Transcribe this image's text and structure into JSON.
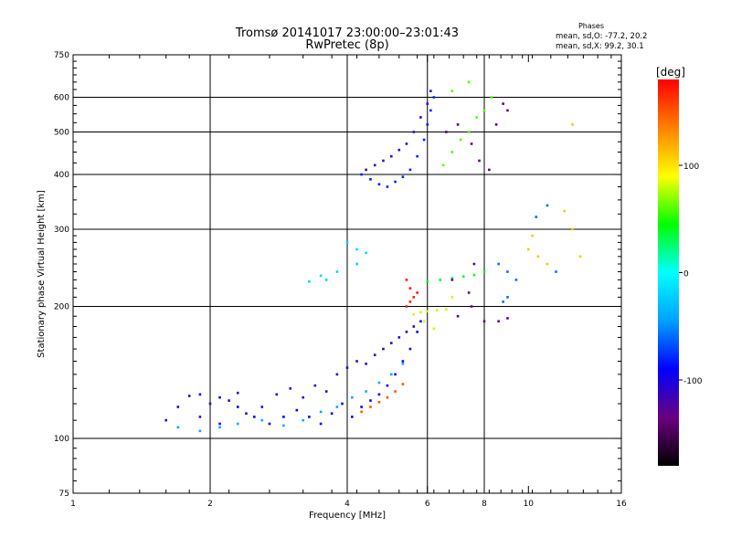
{
  "chart_data": {
    "type": "scatter",
    "title": "Tromsø 20141017 23:00:00–23:01:43",
    "subtitle": "RwPretec (8p)",
    "stats_title": "Phases",
    "stats_lines": [
      "mean, sd,O: -77.2, 20.2",
      "mean, sd,X:  99.2, 30.1"
    ],
    "xlabel": "Frequency [MHz]",
    "ylabel": "Stationary phase Virtual Height [km]",
    "x_scale": "log",
    "y_scale": "log",
    "xlim": [
      1,
      16
    ],
    "ylim": [
      75,
      750
    ],
    "xticks": [
      1,
      2,
      4,
      6,
      8,
      10,
      16
    ],
    "xtick_labels": [
      "1",
      "2",
      "4",
      "6",
      "8",
      "10",
      "16"
    ],
    "yticks": [
      75,
      100,
      200,
      300,
      400,
      500,
      600,
      750
    ],
    "ytick_labels": [
      "75",
      "100",
      "200",
      "300",
      "400",
      "500",
      "600",
      "750"
    ],
    "grid_x": [
      2,
      4,
      6,
      8
    ],
    "grid_y": [
      100,
      200,
      300,
      400,
      500,
      600
    ],
    "grid": true,
    "colorbar": {
      "label": "[deg]",
      "range": [
        -180,
        180
      ],
      "ticks": [
        100,
        0,
        -100
      ],
      "tick_labels": [
        "100",
        "0",
        "-100"
      ],
      "colors": [
        "#000000",
        "#6a0080",
        "#0000ff",
        "#00a0ff",
        "#00ffff",
        "#00ff00",
        "#ffff00",
        "#ff8000",
        "#ff0000"
      ]
    },
    "series": [
      {
        "phase_deg": -110,
        "points": [
          [
            1.6,
            110
          ],
          [
            1.7,
            118
          ],
          [
            1.8,
            125
          ],
          [
            1.9,
            112
          ],
          [
            2.0,
            120
          ],
          [
            2.1,
            108
          ],
          [
            2.2,
            122
          ],
          [
            2.3,
            127
          ],
          [
            2.4,
            114
          ],
          [
            2.6,
            118
          ],
          [
            2.8,
            126
          ],
          [
            3.0,
            130
          ],
          [
            3.2,
            124
          ],
          [
            3.4,
            132
          ],
          [
            3.6,
            128
          ],
          [
            3.8,
            140
          ],
          [
            4.0,
            145
          ],
          [
            4.2,
            150
          ],
          [
            4.4,
            148
          ],
          [
            4.6,
            155
          ],
          [
            4.8,
            160
          ],
          [
            5.0,
            165
          ],
          [
            5.2,
            170
          ],
          [
            5.4,
            175
          ],
          [
            5.6,
            180
          ]
        ]
      },
      {
        "phase_deg": -90,
        "points": [
          [
            1.9,
            126
          ],
          [
            2.1,
            124
          ],
          [
            2.3,
            118
          ],
          [
            2.5,
            112
          ],
          [
            2.7,
            108
          ],
          [
            2.9,
            112
          ],
          [
            3.1,
            116
          ],
          [
            3.3,
            112
          ],
          [
            3.5,
            108
          ],
          [
            3.7,
            114
          ],
          [
            3.9,
            120
          ],
          [
            4.1,
            112
          ],
          [
            4.3,
            118
          ],
          [
            4.5,
            122
          ],
          [
            4.7,
            126
          ],
          [
            4.9,
            132
          ],
          [
            5.1,
            140
          ],
          [
            5.3,
            150
          ],
          [
            5.5,
            160
          ],
          [
            5.7,
            175
          ],
          [
            5.8,
            185
          ]
        ]
      },
      {
        "phase_deg": -40,
        "points": [
          [
            1.7,
            106
          ],
          [
            1.9,
            104
          ],
          [
            2.1,
            106
          ],
          [
            2.3,
            108
          ],
          [
            2.6,
            110
          ],
          [
            2.9,
            107
          ],
          [
            3.2,
            110
          ],
          [
            3.5,
            115
          ],
          [
            3.8,
            118
          ],
          [
            4.1,
            124
          ],
          [
            4.4,
            128
          ],
          [
            4.7,
            134
          ],
          [
            5.0,
            140
          ],
          [
            5.3,
            148
          ]
        ]
      },
      {
        "phase_deg": 150,
        "points": [
          [
            4.3,
            115
          ],
          [
            4.5,
            118
          ],
          [
            4.7,
            121
          ],
          [
            4.9,
            124
          ],
          [
            5.1,
            128
          ],
          [
            5.3,
            133
          ]
        ]
      },
      {
        "phase_deg": 170,
        "points": [
          [
            5.4,
            200
          ],
          [
            5.5,
            205
          ],
          [
            5.6,
            210
          ],
          [
            5.7,
            215
          ],
          [
            5.4,
            230
          ],
          [
            5.5,
            220
          ]
        ]
      },
      {
        "phase_deg": 40,
        "points": [
          [
            6.0,
            228
          ],
          [
            6.4,
            230
          ],
          [
            6.8,
            232
          ],
          [
            7.2,
            234
          ],
          [
            7.6,
            236
          ],
          [
            8.0,
            240
          ]
        ]
      },
      {
        "phase_deg": 80,
        "points": [
          [
            5.6,
            192
          ],
          [
            5.8,
            194
          ],
          [
            6.0,
            195
          ],
          [
            6.3,
            196
          ],
          [
            6.6,
            197
          ],
          [
            5.9,
            185
          ],
          [
            6.2,
            178
          ],
          [
            6.8,
            210
          ]
        ]
      },
      {
        "phase_deg": -80,
        "points": [
          [
            4.3,
            400
          ],
          [
            4.5,
            390
          ],
          [
            4.7,
            380
          ],
          [
            4.9,
            375
          ],
          [
            5.1,
            385
          ],
          [
            5.3,
            395
          ],
          [
            5.5,
            410
          ],
          [
            5.7,
            440
          ],
          [
            5.9,
            480
          ],
          [
            6.0,
            520
          ],
          [
            6.1,
            560
          ],
          [
            6.2,
            600
          ]
        ]
      },
      {
        "phase_deg": -115,
        "points": [
          [
            4.4,
            410
          ],
          [
            4.6,
            420
          ],
          [
            4.8,
            430
          ],
          [
            5.0,
            440
          ],
          [
            5.2,
            455
          ],
          [
            5.4,
            470
          ],
          [
            5.6,
            500
          ],
          [
            5.8,
            540
          ],
          [
            6.0,
            580
          ],
          [
            6.1,
            620
          ]
        ]
      },
      {
        "phase_deg": 60,
        "points": [
          [
            6.5,
            420
          ],
          [
            6.8,
            450
          ],
          [
            7.1,
            480
          ],
          [
            7.4,
            500
          ],
          [
            7.7,
            540
          ],
          [
            8.0,
            560
          ],
          [
            8.3,
            600
          ],
          [
            6.8,
            620
          ],
          [
            7.4,
            650
          ]
        ]
      },
      {
        "phase_deg": -140,
        "points": [
          [
            6.6,
            500
          ],
          [
            7.0,
            520
          ],
          [
            7.5,
            470
          ],
          [
            7.8,
            430
          ],
          [
            8.2,
            410
          ],
          [
            8.5,
            520
          ],
          [
            9.0,
            560
          ],
          [
            8.8,
            580
          ]
        ]
      },
      {
        "phase_deg": -20,
        "points": [
          [
            4.0,
            280
          ],
          [
            4.2,
            270
          ],
          [
            4.4,
            265
          ],
          [
            4.2,
            250
          ],
          [
            3.8,
            240
          ],
          [
            3.6,
            230
          ],
          [
            3.3,
            228
          ],
          [
            3.5,
            235
          ]
        ]
      },
      {
        "phase_deg": -130,
        "points": [
          [
            7.0,
            190
          ],
          [
            7.5,
            200
          ],
          [
            8.0,
            185
          ],
          [
            8.6,
            185
          ],
          [
            9.0,
            188
          ],
          [
            7.4,
            215
          ],
          [
            6.8,
            230
          ],
          [
            7.6,
            250
          ]
        ]
      },
      {
        "phase_deg": 110,
        "points": [
          [
            10.2,
            290
          ],
          [
            10.5,
            260
          ],
          [
            11.0,
            250
          ],
          [
            10.0,
            270
          ],
          [
            12.0,
            330
          ],
          [
            12.5,
            300
          ],
          [
            13.0,
            260
          ],
          [
            12.5,
            520
          ]
        ]
      },
      {
        "phase_deg": -60,
        "points": [
          [
            8.6,
            250
          ],
          [
            9.0,
            240
          ],
          [
            9.4,
            230
          ],
          [
            8.8,
            205
          ],
          [
            9.0,
            210
          ],
          [
            11.5,
            240
          ],
          [
            11.0,
            340
          ],
          [
            10.4,
            320
          ]
        ]
      }
    ]
  }
}
